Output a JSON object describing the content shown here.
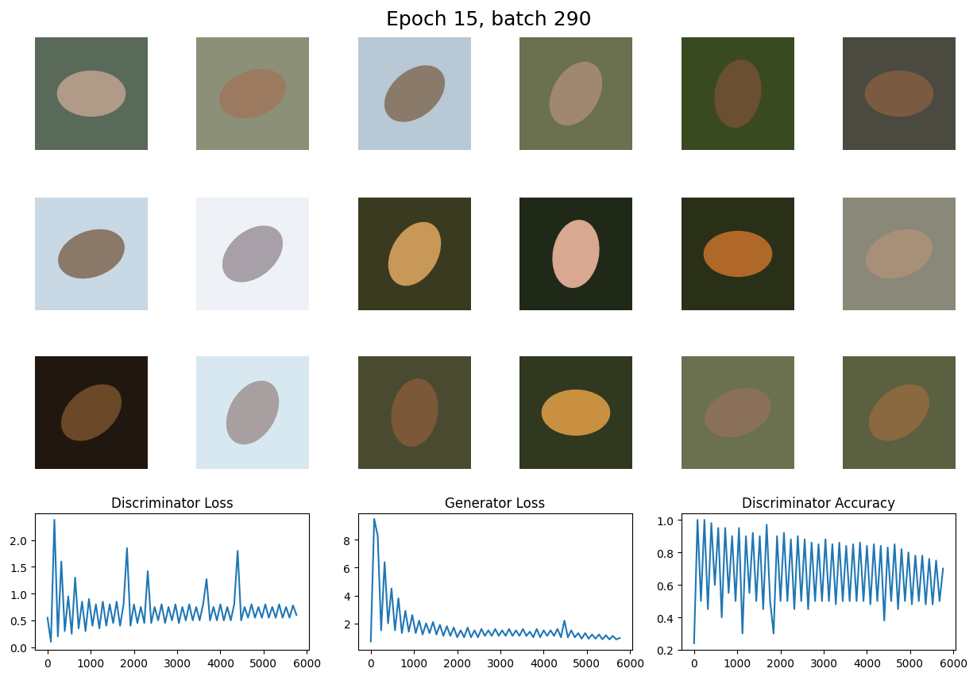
{
  "title": "Epoch 15, batch 290",
  "chart_data": [
    {
      "type": "line",
      "title": "Discriminator Loss",
      "color": "#1f77b4",
      "x": [
        0,
        80,
        160,
        240,
        320,
        400,
        480,
        560,
        640,
        720,
        800,
        880,
        960,
        1040,
        1120,
        1200,
        1280,
        1360,
        1440,
        1520,
        1600,
        1680,
        1760,
        1840,
        1920,
        2000,
        2080,
        2160,
        2240,
        2320,
        2400,
        2480,
        2560,
        2640,
        2720,
        2800,
        2880,
        2960,
        3040,
        3120,
        3200,
        3280,
        3360,
        3440,
        3520,
        3600,
        3680,
        3760,
        3840,
        3920,
        4000,
        4080,
        4160,
        4240,
        4320,
        4400,
        4480,
        4560,
        4640,
        4720,
        4800,
        4880,
        4960,
        5040,
        5120,
        5200,
        5280,
        5360,
        5440,
        5520,
        5600,
        5680,
        5760
      ],
      "values": [
        0.55,
        0.1,
        2.38,
        0.2,
        1.6,
        0.3,
        0.95,
        0.25,
        1.3,
        0.35,
        0.85,
        0.3,
        0.9,
        0.4,
        0.8,
        0.35,
        0.85,
        0.4,
        0.8,
        0.45,
        0.85,
        0.4,
        0.8,
        1.85,
        0.4,
        0.8,
        0.45,
        0.75,
        0.45,
        1.42,
        0.45,
        0.75,
        0.5,
        0.8,
        0.45,
        0.75,
        0.5,
        0.8,
        0.45,
        0.75,
        0.5,
        0.8,
        0.5,
        0.75,
        0.5,
        0.8,
        1.27,
        0.5,
        0.75,
        0.5,
        0.8,
        0.5,
        0.75,
        0.5,
        0.8,
        1.8,
        0.5,
        0.75,
        0.55,
        0.8,
        0.55,
        0.75,
        0.55,
        0.8,
        0.55,
        0.75,
        0.55,
        0.8,
        0.55,
        0.75,
        0.55,
        0.78,
        0.6
      ],
      "xlim": [
        -290,
        6050
      ],
      "xticks": [
        0,
        1000,
        2000,
        3000,
        4000,
        5000,
        6000
      ],
      "ylim": [
        -0.05,
        2.5
      ],
      "yticks": [
        {
          "value": 0,
          "label": "0.0"
        },
        {
          "value": 0.5,
          "label": "0.5"
        },
        {
          "value": 1,
          "label": "1.0"
        },
        {
          "value": 1.5,
          "label": "1.5"
        },
        {
          "value": 2,
          "label": "2.0"
        }
      ]
    },
    {
      "type": "line",
      "title": "Generator Loss",
      "color": "#1f77b4",
      "x": [
        0,
        80,
        160,
        240,
        320,
        400,
        480,
        560,
        640,
        720,
        800,
        880,
        960,
        1040,
        1120,
        1200,
        1280,
        1360,
        1440,
        1520,
        1600,
        1680,
        1760,
        1840,
        1920,
        2000,
        2080,
        2160,
        2240,
        2320,
        2400,
        2480,
        2560,
        2640,
        2720,
        2800,
        2880,
        2960,
        3040,
        3120,
        3200,
        3280,
        3360,
        3440,
        3520,
        3600,
        3680,
        3760,
        3840,
        3920,
        4000,
        4080,
        4160,
        4240,
        4320,
        4400,
        4480,
        4560,
        4640,
        4720,
        4800,
        4880,
        4960,
        5040,
        5120,
        5200,
        5280,
        5360,
        5440,
        5520,
        5600,
        5680,
        5760
      ],
      "values": [
        0.7,
        9.5,
        8.3,
        1.5,
        6.4,
        2.0,
        4.5,
        1.5,
        3.8,
        1.3,
        2.9,
        1.4,
        2.6,
        1.3,
        2.2,
        1.2,
        2.0,
        1.3,
        2.1,
        1.2,
        1.9,
        1.1,
        1.8,
        1.1,
        1.7,
        1.0,
        1.5,
        1.0,
        1.7,
        1.0,
        1.5,
        1.0,
        1.6,
        1.1,
        1.5,
        1.1,
        1.6,
        1.1,
        1.5,
        1.1,
        1.6,
        1.1,
        1.5,
        1.1,
        1.6,
        1.1,
        1.4,
        1.0,
        1.6,
        1.0,
        1.5,
        1.1,
        1.5,
        1.1,
        1.6,
        1.0,
        2.2,
        1.0,
        1.5,
        1.0,
        1.3,
        0.9,
        1.3,
        0.9,
        1.2,
        0.9,
        1.2,
        0.85,
        1.15,
        0.85,
        1.1,
        0.85,
        0.95
      ],
      "xlim": [
        -290,
        6050
      ],
      "xticks": [
        0,
        1000,
        2000,
        3000,
        4000,
        5000,
        6000
      ],
      "ylim": [
        0.1,
        9.9
      ],
      "yticks": [
        2,
        4,
        6,
        8
      ]
    },
    {
      "type": "line",
      "title": "Discriminator Accuracy",
      "color": "#1f77b4",
      "x": [
        0,
        80,
        160,
        240,
        320,
        400,
        480,
        560,
        640,
        720,
        800,
        880,
        960,
        1040,
        1120,
        1200,
        1280,
        1360,
        1440,
        1520,
        1600,
        1680,
        1760,
        1840,
        1920,
        2000,
        2080,
        2160,
        2240,
        2320,
        2400,
        2480,
        2560,
        2640,
        2720,
        2800,
        2880,
        2960,
        3040,
        3120,
        3200,
        3280,
        3360,
        3440,
        3520,
        3600,
        3680,
        3760,
        3840,
        3920,
        4000,
        4080,
        4160,
        4240,
        4320,
        4400,
        4480,
        4560,
        4640,
        4720,
        4800,
        4880,
        4960,
        5040,
        5120,
        5200,
        5280,
        5360,
        5440,
        5520,
        5600,
        5680,
        5760
      ],
      "values": [
        0.24,
        1.0,
        0.5,
        1.0,
        0.45,
        0.98,
        0.6,
        0.95,
        0.4,
        0.95,
        0.55,
        0.9,
        0.5,
        0.95,
        0.3,
        0.9,
        0.55,
        0.92,
        0.5,
        0.9,
        0.45,
        0.97,
        0.5,
        0.3,
        0.9,
        0.5,
        0.92,
        0.5,
        0.88,
        0.45,
        0.9,
        0.5,
        0.88,
        0.45,
        0.86,
        0.5,
        0.85,
        0.5,
        0.88,
        0.5,
        0.85,
        0.48,
        0.86,
        0.5,
        0.84,
        0.5,
        0.85,
        0.5,
        0.86,
        0.5,
        0.84,
        0.48,
        0.85,
        0.5,
        0.84,
        0.38,
        0.83,
        0.5,
        0.85,
        0.45,
        0.82,
        0.5,
        0.8,
        0.48,
        0.78,
        0.5,
        0.78,
        0.48,
        0.76,
        0.48,
        0.75,
        0.5,
        0.7
      ],
      "xlim": [
        -290,
        6050
      ],
      "xticks": [
        0,
        1000,
        2000,
        3000,
        4000,
        5000,
        6000
      ],
      "ylim": [
        0.2,
        1.04
      ],
      "yticks": [
        {
          "value": 0.2,
          "label": "0.2"
        },
        {
          "value": 0.4,
          "label": "0.4"
        },
        {
          "value": 0.6,
          "label": "0.6"
        },
        {
          "value": 0.8,
          "label": "0.8"
        },
        {
          "value": 1.0,
          "label": "1.0"
        }
      ]
    }
  ]
}
